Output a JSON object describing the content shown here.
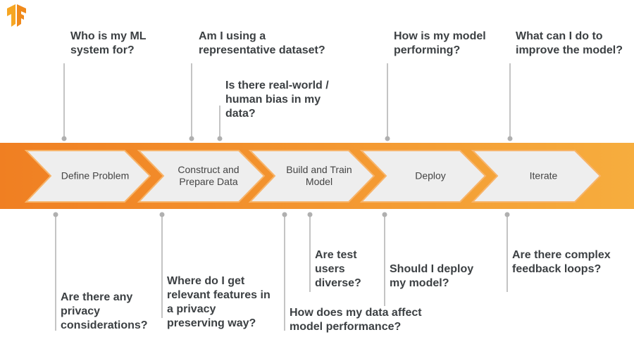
{
  "colors": {
    "band_start": "#f07f22",
    "band_end": "#f6ad3e",
    "chevron_fill": "#eeeeee",
    "connector": "#b0b0b0",
    "text": "#3c4043"
  },
  "logo": {
    "icon": "tensorflow-logo"
  },
  "stages": [
    {
      "label": "Define Problem"
    },
    {
      "label": "Construct and Prepare Data"
    },
    {
      "label": "Build and Train Model"
    },
    {
      "label": "Deploy"
    },
    {
      "label": "Iterate"
    }
  ],
  "top_questions": [
    {
      "text": "Who is my ML system for?"
    },
    {
      "text": "Am I using a representative dataset?"
    },
    {
      "text": "Is there real-world / human bias in my data?"
    },
    {
      "text": "How is my model performing?"
    },
    {
      "text": "What can I do to improve the model?"
    }
  ],
  "bottom_questions": [
    {
      "text": "Are there any privacy considerations?"
    },
    {
      "text": "Where do I get relevant features in a privacy preserving way?"
    },
    {
      "text": "How does my data affect model performance?"
    },
    {
      "text": "Are test users diverse?"
    },
    {
      "text": "Should I deploy my model?"
    },
    {
      "text": "Are there complex feedback loops?"
    }
  ]
}
